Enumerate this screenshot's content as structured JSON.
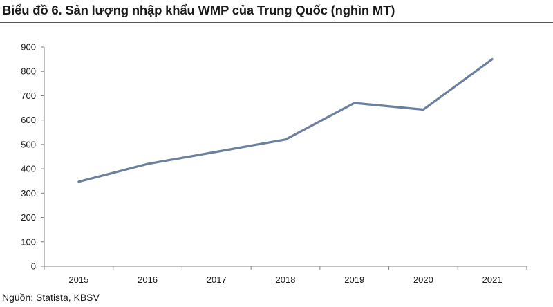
{
  "header": {
    "title": "Biểu đồ 6. Sản lượng nhập khẩu WMP của Trung Quốc (nghìn MT)"
  },
  "footer": {
    "source": "Nguồn: Statista, KBSV"
  },
  "chart_data": {
    "type": "line",
    "title": "Biểu đồ 6. Sản lượng nhập khẩu WMP của Trung Quốc (nghìn MT)",
    "xlabel": "",
    "ylabel": "",
    "categories": [
      "2015",
      "2016",
      "2017",
      "2018",
      "2019",
      "2020",
      "2021"
    ],
    "series": [
      {
        "values": [
          347,
          420,
          470,
          520,
          670,
          643,
          850
        ],
        "color": "#6b7f9e"
      }
    ],
    "ylim": [
      0,
      900
    ],
    "yticks": [
      0,
      100,
      200,
      300,
      400,
      500,
      600,
      700,
      800,
      900
    ],
    "grid": false,
    "legend": "none"
  }
}
